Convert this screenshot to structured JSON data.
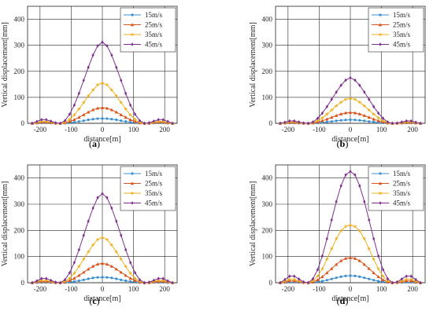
{
  "figure": {
    "colors": {
      "15m/s": "#3b8fd0",
      "25m/s": "#d9541a",
      "35m/s": "#edb120",
      "45m/s": "#7e2f8e"
    },
    "panels_meta": [
      {
        "label_prefix": "(",
        "label_letter": "a",
        "label_suffix": ")"
      },
      {
        "label_prefix": "(",
        "label_letter": "b",
        "label_suffix": ")"
      },
      {
        "label_prefix": "(",
        "label_letter": "c",
        "label_suffix": ")"
      },
      {
        "label_prefix": "(",
        "label_letter": "d",
        "label_suffix": ")"
      }
    ]
  },
  "chart_data": [
    {
      "type": "line",
      "xlabel": "distance[m]",
      "ylabel": "Vertical displacement[mm]",
      "xlim": [
        -240,
        240
      ],
      "ylim": [
        0,
        450
      ],
      "xticks": [
        -200,
        -100,
        0,
        100,
        200
      ],
      "yticks": [
        0,
        100,
        200,
        300,
        400
      ],
      "grid": true,
      "legend_position": "top-right",
      "x": [
        -225,
        -210,
        -195,
        -180,
        -165,
        -150,
        -135,
        -120,
        -105,
        -90,
        -75,
        -60,
        -45,
        -30,
        -15,
        0,
        15,
        30,
        45,
        60,
        75,
        90,
        105,
        120,
        135,
        150,
        165,
        180,
        195,
        210,
        225
      ],
      "series": [
        {
          "name": "15m/s",
          "values": [
            0,
            0.5,
            1.5,
            1.5,
            1,
            0,
            0,
            0.5,
            2,
            4,
            7,
            10,
            13.5,
            16,
            18,
            18.5,
            18,
            16,
            13.5,
            10,
            7,
            4,
            2,
            0.5,
            0,
            0,
            1,
            1.5,
            1.5,
            0.5,
            0
          ]
        },
        {
          "name": "25m/s",
          "values": [
            0,
            2,
            4,
            4,
            2.5,
            0.5,
            0,
            2,
            7,
            14,
            23,
            33,
            43,
            52,
            58,
            60,
            58,
            52,
            43,
            33,
            23,
            14,
            7,
            2,
            0,
            0.5,
            2.5,
            4,
            4,
            2,
            0
          ]
        },
        {
          "name": "35m/s",
          "values": [
            0,
            3,
            7,
            7,
            4,
            1,
            0,
            4,
            15,
            32,
            55,
            80,
            105,
            128,
            148,
            155,
            148,
            128,
            105,
            80,
            55,
            32,
            15,
            4,
            0,
            1,
            4,
            7,
            7,
            3,
            0
          ]
        },
        {
          "name": "45m/s",
          "values": [
            0,
            7,
            14,
            14,
            8,
            2,
            0,
            10,
            35,
            70,
            115,
            165,
            215,
            262,
            298,
            312,
            298,
            262,
            215,
            165,
            115,
            70,
            35,
            10,
            0,
            2,
            8,
            14,
            14,
            7,
            0
          ]
        }
      ]
    },
    {
      "type": "line",
      "xlabel": "distance[m]",
      "ylabel": "Vertical displacement[mm]",
      "xlim": [
        -240,
        240
      ],
      "ylim": [
        0,
        450
      ],
      "xticks": [
        -200,
        -100,
        0,
        100,
        200
      ],
      "yticks": [
        0,
        100,
        200,
        300,
        400
      ],
      "grid": true,
      "legend_position": "top-right",
      "x": [
        -225,
        -210,
        -195,
        -180,
        -165,
        -150,
        -135,
        -120,
        -105,
        -90,
        -75,
        -60,
        -45,
        -30,
        -15,
        0,
        15,
        30,
        45,
        60,
        75,
        90,
        105,
        120,
        135,
        150,
        165,
        180,
        195,
        210,
        225
      ],
      "series": [
        {
          "name": "15m/s",
          "values": [
            0,
            0.5,
            1,
            1,
            0.5,
            0,
            0,
            0.5,
            1.5,
            3,
            5,
            7,
            9.5,
            11.5,
            13,
            13.5,
            13,
            11.5,
            9.5,
            7,
            5,
            3,
            1.5,
            0.5,
            0,
            0,
            0.5,
            1,
            1,
            0.5,
            0
          ]
        },
        {
          "name": "25m/s",
          "values": [
            0,
            1.5,
            3,
            3,
            2,
            0.5,
            0,
            1.5,
            5,
            10,
            16,
            23,
            30,
            36,
            40,
            42,
            40,
            36,
            30,
            23,
            16,
            10,
            5,
            1.5,
            0,
            0.5,
            2,
            3,
            3,
            1.5,
            0
          ]
        },
        {
          "name": "35m/s",
          "values": [
            0,
            2,
            5,
            5,
            3,
            0.5,
            0,
            3,
            10,
            21,
            35,
            51,
            67,
            81,
            92,
            96,
            92,
            81,
            67,
            51,
            35,
            21,
            10,
            3,
            0,
            0.5,
            3,
            5,
            5,
            2,
            0
          ]
        },
        {
          "name": "45m/s",
          "values": [
            0,
            4,
            9,
            9,
            5,
            1,
            0,
            5,
            19,
            39,
            64,
            92,
            120,
            146,
            166,
            175,
            166,
            146,
            120,
            92,
            64,
            39,
            19,
            5,
            0,
            1,
            5,
            9,
            9,
            4,
            0
          ]
        }
      ]
    },
    {
      "type": "line",
      "xlabel": "distance[m]",
      "ylabel": "Vertical displacement[mm]",
      "xlim": [
        -240,
        240
      ],
      "ylim": [
        0,
        450
      ],
      "xticks": [
        -200,
        -100,
        0,
        100,
        200
      ],
      "yticks": [
        0,
        100,
        200,
        300,
        400
      ],
      "grid": true,
      "legend_position": "top-right",
      "x": [
        -225,
        -210,
        -195,
        -180,
        -165,
        -150,
        -135,
        -120,
        -105,
        -90,
        -75,
        -60,
        -45,
        -30,
        -15,
        0,
        15,
        30,
        45,
        60,
        75,
        90,
        105,
        120,
        135,
        150,
        165,
        180,
        195,
        210,
        225
      ],
      "series": [
        {
          "name": "15m/s",
          "values": [
            0,
            0.5,
            1.5,
            1.5,
            1,
            0,
            0,
            0.5,
            2,
            4.5,
            7.5,
            11,
            15,
            18.5,
            20.5,
            21,
            20.5,
            18.5,
            15,
            11,
            7.5,
            4.5,
            2,
            0.5,
            0,
            0,
            1,
            1.5,
            1.5,
            0.5,
            0
          ]
        },
        {
          "name": "25m/s",
          "values": [
            0,
            2.5,
            5,
            5,
            3,
            0.5,
            0,
            2.5,
            8.5,
            17,
            28,
            40,
            52,
            63,
            71,
            74,
            71,
            63,
            52,
            40,
            28,
            17,
            8.5,
            2.5,
            0,
            0.5,
            3,
            5,
            5,
            2.5,
            0
          ]
        },
        {
          "name": "35m/s",
          "values": [
            0,
            4,
            9,
            9,
            5,
            1,
            0,
            5,
            17,
            36,
            62,
            90,
            118,
            144,
            165,
            173,
            165,
            144,
            118,
            90,
            62,
            36,
            17,
            5,
            0,
            1,
            5,
            9,
            9,
            4,
            0
          ]
        },
        {
          "name": "45m/s",
          "values": [
            0,
            7,
            16,
            16,
            9,
            2,
            0,
            11,
            38,
            77,
            126,
            181,
            235,
            285,
            325,
            340,
            325,
            285,
            235,
            181,
            126,
            77,
            38,
            11,
            0,
            2,
            9,
            16,
            16,
            7,
            0
          ]
        }
      ]
    },
    {
      "type": "line",
      "xlabel": "distance[m]",
      "ylabel": "Vertical displacement[mm]",
      "xlim": [
        -240,
        240
      ],
      "ylim": [
        0,
        450
      ],
      "xticks": [
        -200,
        -100,
        0,
        100,
        200
      ],
      "yticks": [
        0,
        100,
        200,
        300,
        400
      ],
      "grid": true,
      "legend_position": "top-right",
      "x": [
        -225,
        -210,
        -195,
        -180,
        -165,
        -150,
        -135,
        -120,
        -105,
        -90,
        -75,
        -60,
        -45,
        -30,
        -15,
        0,
        15,
        30,
        45,
        60,
        75,
        90,
        105,
        120,
        135,
        150,
        165,
        180,
        195,
        210,
        225
      ],
      "series": [
        {
          "name": "15m/s",
          "values": [
            0,
            1,
            2,
            2,
            1,
            0,
            0,
            1,
            3,
            6,
            10,
            14.5,
            19,
            23,
            26,
            27,
            26,
            23,
            19,
            14.5,
            10,
            6,
            3,
            1,
            0,
            0,
            1,
            2,
            2,
            1,
            0
          ]
        },
        {
          "name": "25m/s",
          "values": [
            0,
            3,
            7,
            7,
            4,
            1,
            0,
            3,
            11,
            23,
            38,
            54,
            70,
            84,
            93,
            96,
            93,
            84,
            70,
            54,
            38,
            23,
            11,
            3,
            0,
            1,
            4,
            7,
            7,
            3,
            0
          ]
        },
        {
          "name": "35m/s",
          "values": [
            0,
            6,
            13,
            13,
            7,
            1.5,
            0,
            7,
            25,
            53,
            90,
            130,
            168,
            198,
            215,
            220,
            215,
            198,
            168,
            130,
            90,
            53,
            25,
            7,
            0,
            1.5,
            7,
            13,
            13,
            6,
            0
          ]
        },
        {
          "name": "45m/s",
          "values": [
            0,
            12,
            25,
            25,
            14,
            3,
            0,
            15,
            50,
            102,
            168,
            240,
            310,
            370,
            412,
            425,
            412,
            370,
            310,
            240,
            168,
            102,
            50,
            15,
            0,
            3,
            14,
            25,
            25,
            12,
            0
          ]
        }
      ]
    }
  ]
}
